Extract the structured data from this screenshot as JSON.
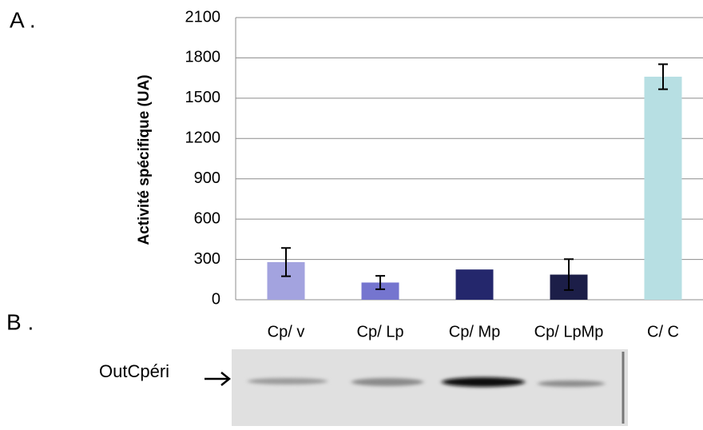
{
  "panels": {
    "a": "A .",
    "b": "B ."
  },
  "chart_data": {
    "type": "bar",
    "ylabel": "Activité spécifique (UA)",
    "categories": [
      "Cp/ v",
      "Cp/ Lp",
      "Cp/ Mp",
      "Cp/ LpMp",
      "C/ C"
    ],
    "values": [
      280,
      128,
      225,
      187,
      1660
    ],
    "errors": [
      105,
      50,
      null,
      115,
      93
    ],
    "colors": [
      "#a3a3df",
      "#7575cf",
      "#24276c",
      "#1c1e48",
      "#b7dfe3"
    ],
    "ylim": [
      0,
      2100
    ],
    "yticks": [
      0,
      300,
      600,
      900,
      1200,
      1500,
      1800,
      2100
    ],
    "grid": true
  },
  "blot": {
    "label": "OutCpéri"
  }
}
